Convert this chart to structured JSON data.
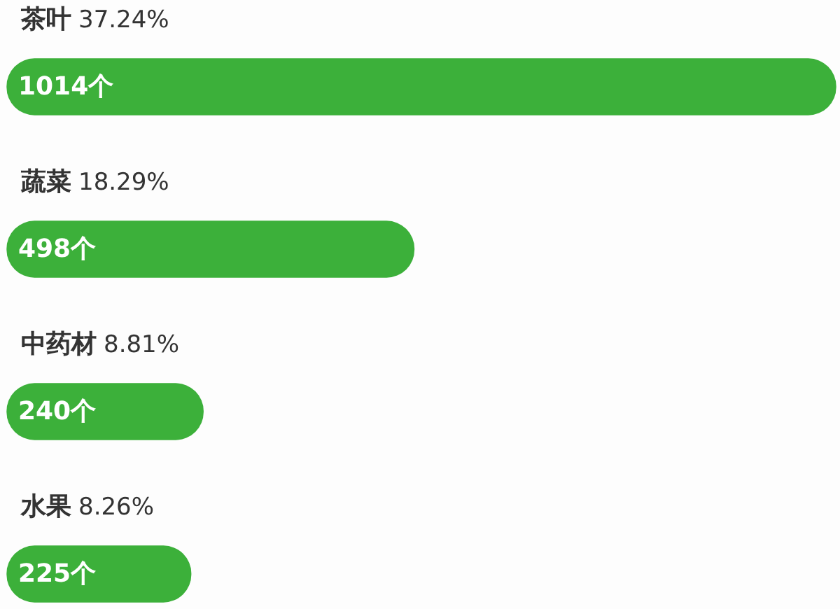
{
  "chart_data": {
    "type": "bar",
    "orientation": "horizontal",
    "categories": [
      "茶叶",
      "蔬菜",
      "中药材",
      "水果"
    ],
    "values": [
      1014,
      498,
      240,
      225
    ],
    "value_labels": [
      "1014个",
      "498个",
      "240个",
      "225个"
    ],
    "color": "#3cb03a",
    "tick_labels": "y",
    "annotations": [
      "37.24%",
      "18.29%",
      "8.81%",
      "8.26%"
    ]
  }
}
